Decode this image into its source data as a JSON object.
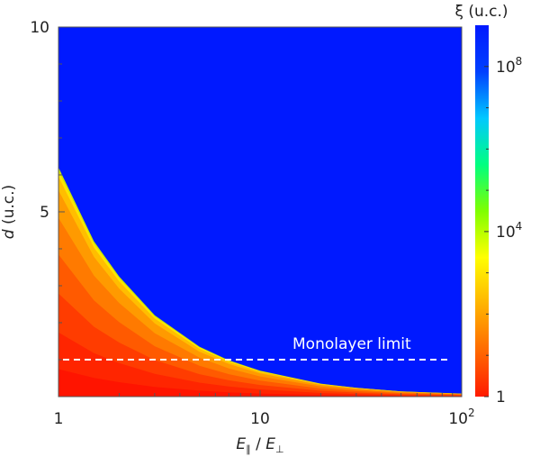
{
  "chart_data": {
    "type": "heatmap",
    "title": "",
    "xlabel": {
      "base": "E",
      "sub1": "∥",
      "sep": " / ",
      "base2": "E",
      "sub2": "⊥"
    },
    "ylabel": {
      "italic": "d",
      "rest": " (u.c.)"
    },
    "x_scale": "log",
    "xlim": [
      1,
      100
    ],
    "ylim": [
      0,
      10
    ],
    "x_ticks": [
      {
        "value": 1,
        "label": "1"
      },
      {
        "value": 10,
        "label": "10"
      },
      {
        "value": 100,
        "label": "10",
        "sup": "2"
      }
    ],
    "y_ticks": [
      {
        "value": 5,
        "label": "5"
      },
      {
        "value": 10,
        "label": "10"
      }
    ],
    "colorbar": {
      "title": "ξ (u.c.)",
      "scale": "log",
      "range": [
        1,
        1000000000
      ],
      "ticks": [
        {
          "value": 1,
          "label": "1",
          "sup": ""
        },
        {
          "value": 10000,
          "label": "10",
          "sup": "4"
        },
        {
          "value": 100000000,
          "label": "10",
          "sup": "8"
        }
      ],
      "colors": [
        "#ff1a00",
        "#ff6a00",
        "#ffb400",
        "#ffff00",
        "#7fff00",
        "#00ff80",
        "#00c8ff",
        "#0040ff",
        "#0019ff"
      ]
    },
    "boundary_curve": {
      "description_free": true,
      "x": [
        1,
        1.5,
        2,
        3,
        5,
        7,
        10,
        20,
        30,
        50,
        100
      ],
      "y": [
        6.2,
        4.2,
        3.25,
        2.2,
        1.35,
        0.98,
        0.7,
        0.35,
        0.24,
        0.14,
        0.08
      ]
    },
    "region_colors": {
      "above": "#0019ff"
    },
    "annotation": {
      "text": "Monolayer limit",
      "y": 1.0
    }
  }
}
